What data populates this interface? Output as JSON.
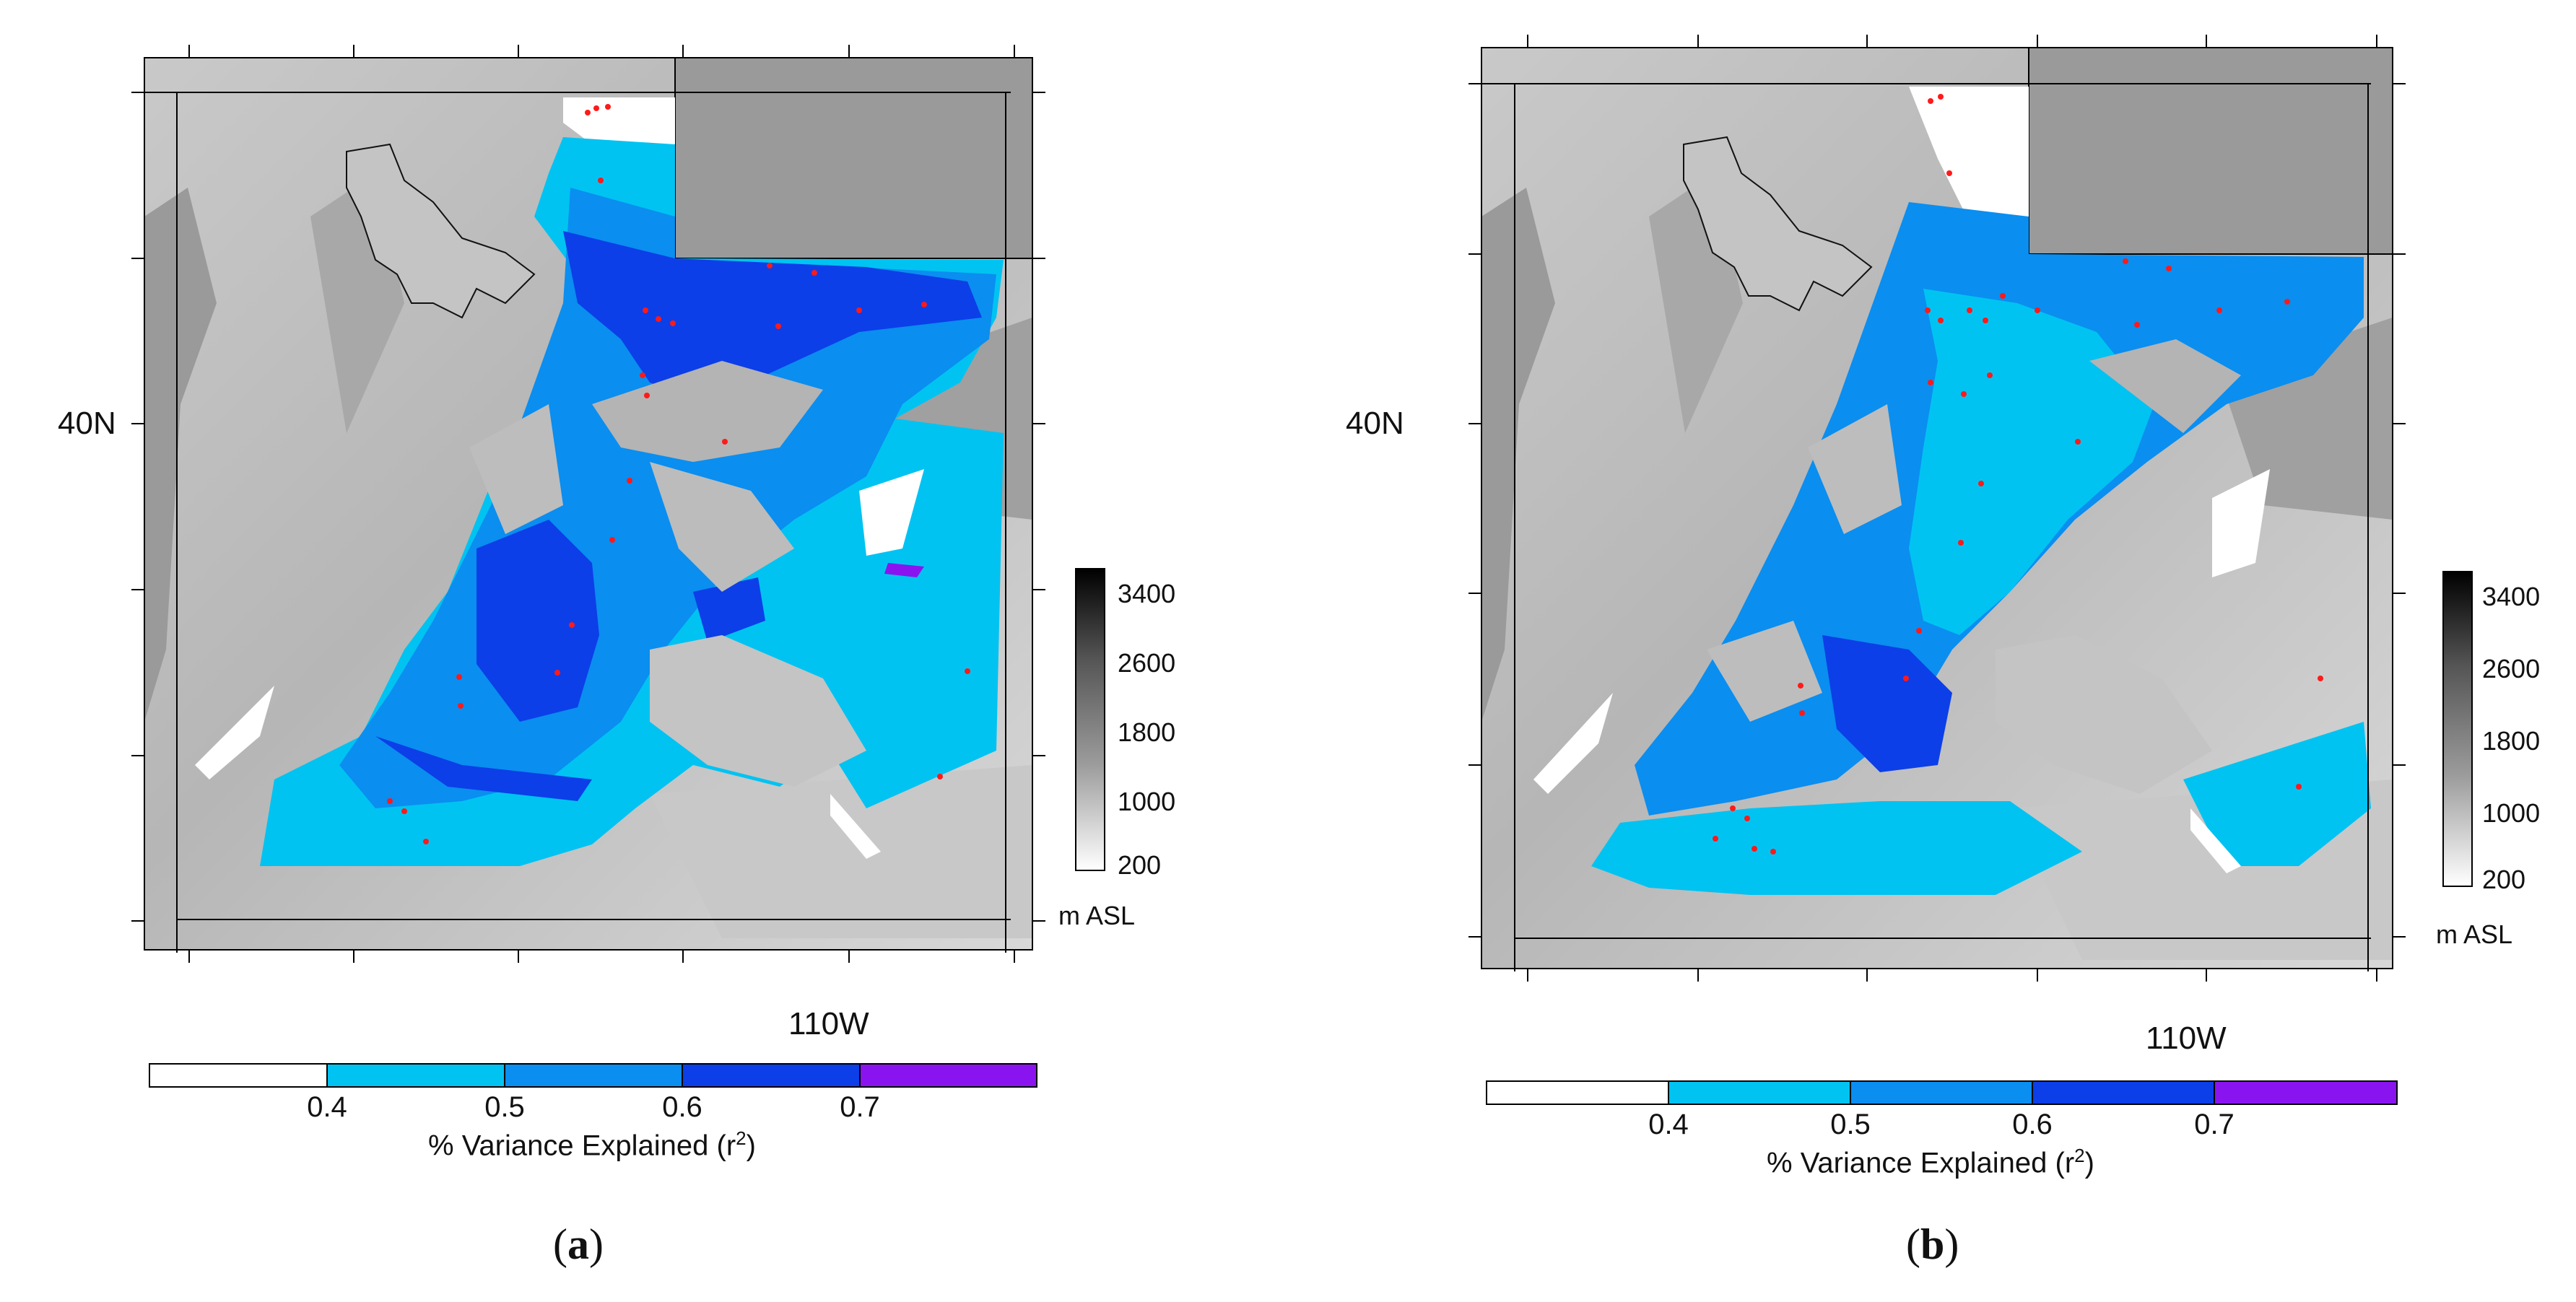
{
  "panels": [
    {
      "id": "a",
      "caption_letter": "a",
      "lat_label": "40N",
      "lon_label": "110W",
      "elevation_bar": {
        "ticks": [
          "3400",
          "2600",
          "1800",
          "1000",
          "200"
        ],
        "unit": "m ASL"
      },
      "variance_bar": {
        "ticks": [
          "0.4",
          "0.5",
          "0.6",
          "0.7"
        ],
        "title_main": "% Variance Explained (r",
        "title_sup": "2",
        "title_end": ")"
      }
    },
    {
      "id": "b",
      "caption_letter": "b",
      "lat_label": "40N",
      "lon_label": "110W",
      "elevation_bar": {
        "ticks": [
          "3400",
          "2600",
          "1800",
          "1000",
          "200"
        ],
        "unit": "m ASL"
      },
      "variance_bar": {
        "ticks": [
          "0.4",
          "0.5",
          "0.6",
          "0.7"
        ],
        "title_main": "% Variance Explained (r",
        "title_sup": "2",
        "title_end": ")"
      }
    }
  ],
  "colors": {
    "r2_lt_0.4": "#ffffff",
    "r2_0.4_0.5": "#00c3f2",
    "r2_0.5_0.6": "#0a8ef0",
    "r2_0.6_0.7": "#0c3fe8",
    "r2_gt_0.7": "#8a14f0",
    "station": "#ff1a1a"
  }
}
